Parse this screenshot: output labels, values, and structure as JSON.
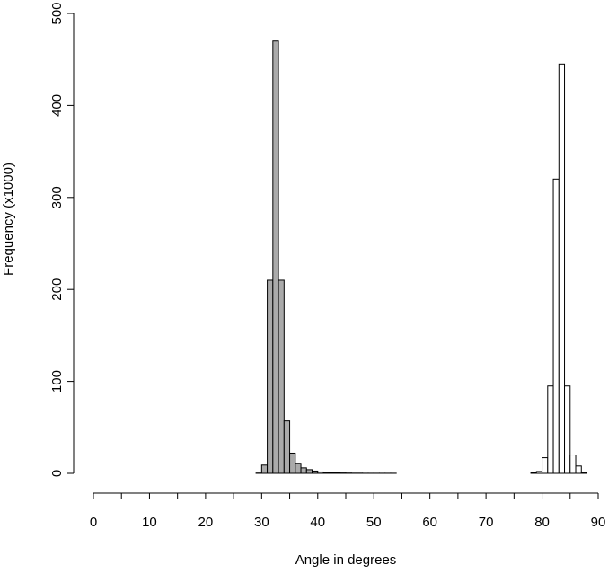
{
  "chart_data": {
    "type": "histogram",
    "xlabel": "Angle in degrees",
    "ylabel": "Frequency (x1000)",
    "xlim": [
      0,
      90
    ],
    "xticks": [
      0,
      10,
      20,
      30,
      40,
      50,
      60,
      70,
      80,
      90
    ],
    "xticks_minor": [
      5,
      15,
      25,
      35,
      45,
      55,
      65,
      75,
      85
    ],
    "ylim": [
      0,
      500
    ],
    "yticks": [
      0,
      100,
      200,
      300,
      400,
      500
    ],
    "series": [
      {
        "color": "#aaaaaa",
        "bins": [
          29,
          30,
          31,
          32,
          33,
          34,
          35,
          36,
          37,
          38,
          39,
          40,
          41,
          42,
          43,
          44,
          45,
          46,
          47,
          48,
          49,
          50,
          51,
          52,
          53,
          54
        ],
        "values": [
          0.3,
          9,
          210,
          470,
          210,
          57,
          22,
          11,
          6,
          4,
          2.5,
          1.5,
          1,
          0.7,
          0.5,
          0.4,
          0.3,
          0.2,
          0.2,
          0.1,
          0.1,
          0.1,
          0.1,
          0.1,
          0.1
        ]
      },
      {
        "color": "#ffffff",
        "bins": [
          75,
          76,
          77,
          78,
          79,
          80,
          81,
          82,
          83,
          84,
          85,
          86,
          87,
          88
        ],
        "values": [
          0,
          0,
          0,
          0.5,
          2,
          17,
          95,
          320,
          445,
          95,
          20,
          8,
          1
        ]
      }
    ]
  }
}
